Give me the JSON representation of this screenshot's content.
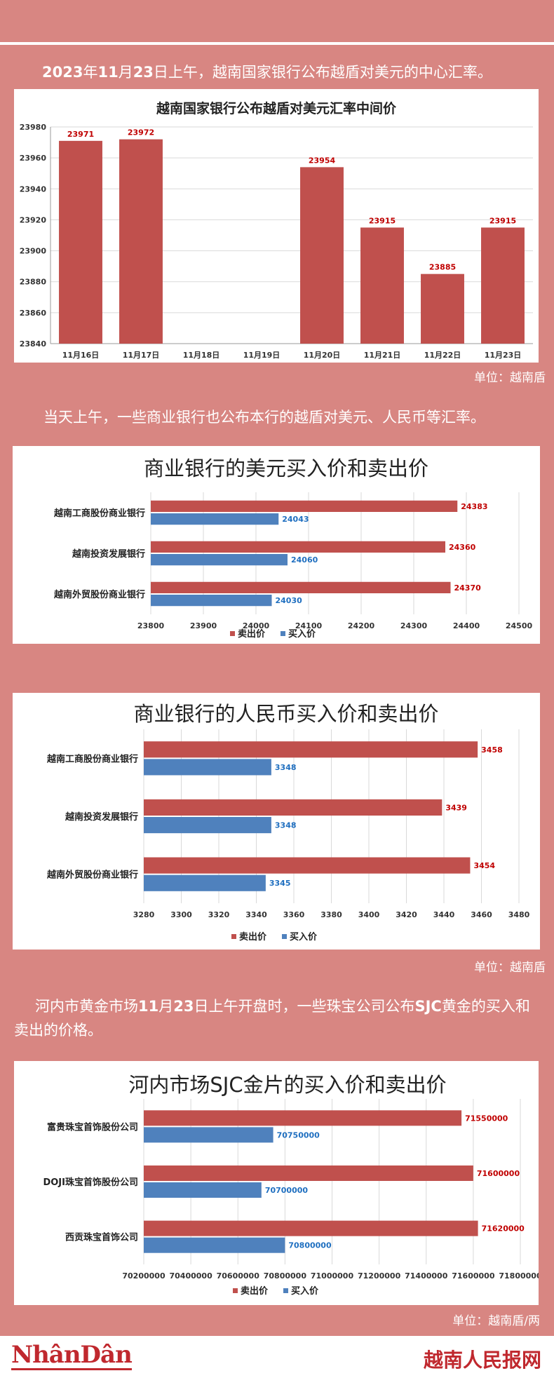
{
  "intro": {
    "year_prefix": "2023",
    "t1": "年",
    "month": "11",
    "t2": "月",
    "day": "23",
    "t3": "日上午，越南国家银行公布越盾对美元的中心汇率。"
  },
  "para2": "当天上午，一些商业银行也公布本行的越盾对美元、人民币等汇率。",
  "para3": {
    "a": "河内市黄金市场",
    "b": "11",
    "c": "月",
    "d": "23",
    "e": "日上午开盘时，一些珠宝公司公布",
    "f": "SJC",
    "g": "黄金的买入和卖出的价格。"
  },
  "units": {
    "u1": "单位：越南盾",
    "u2": "单位：越南盾",
    "u3": "单位：越南盾/两"
  },
  "footer": {
    "left_logo": "NhânDân",
    "right_logo": "越南人民报网"
  },
  "colors": {
    "sell": "#c0504d",
    "buy": "#4f81bd",
    "background": "#d88682"
  },
  "chart_data": [
    {
      "type": "bar",
      "title": "越南国家银行公布越盾对美元汇率中间价",
      "categories": [
        "11月16日",
        "11月17日",
        "11月18日",
        "11月19日",
        "11月20日",
        "11月21日",
        "11月22日",
        "11月23日"
      ],
      "values": [
        23971,
        23972,
        null,
        null,
        23954,
        23915,
        23885,
        23915
      ],
      "labels": [
        "23971",
        "23972",
        "",
        "",
        "23954",
        "23915",
        "23885",
        "23915"
      ],
      "ylim": [
        23840,
        23980
      ],
      "yticks": [
        "23840",
        "23860",
        "23880",
        "23900",
        "23920",
        "23940",
        "23960",
        "23980"
      ],
      "grid": true
    },
    {
      "type": "bar",
      "orientation": "horizontal",
      "title": "商业银行的美元买入价和卖出价",
      "categories": [
        "越南工商股份商业银行",
        "越南投资发展银行",
        "越南外贸股份商业银行"
      ],
      "series": [
        {
          "name": "卖出价",
          "values": [
            24383,
            24360,
            24370
          ],
          "labels": [
            "24383",
            "24360",
            "24370"
          ]
        },
        {
          "name": "买入价",
          "values": [
            24043,
            24060,
            24030
          ],
          "labels": [
            "24043",
            "24060",
            "24030"
          ]
        }
      ],
      "xlim": [
        23800,
        24500
      ],
      "xticks": [
        "23800",
        "23900",
        "24000",
        "24100",
        "24200",
        "24300",
        "24400",
        "24500"
      ],
      "legend": "bottom",
      "grid": true
    },
    {
      "type": "bar",
      "orientation": "horizontal",
      "title": "商业银行的人民币买入价和卖出价",
      "categories": [
        "越南工商股份商业银行",
        "越南投资发展银行",
        "越南外贸股份商业银行"
      ],
      "series": [
        {
          "name": "卖出价",
          "values": [
            3458,
            3439,
            3454
          ],
          "labels": [
            "3458",
            "3439",
            "3454"
          ]
        },
        {
          "name": "买入价",
          "values": [
            3348,
            3348,
            3345
          ],
          "labels": [
            "3348",
            "3348",
            "3345"
          ]
        }
      ],
      "xlim": [
        3280,
        3480
      ],
      "xticks": [
        "3280",
        "3300",
        "3320",
        "3340",
        "3360",
        "3380",
        "3400",
        "3420",
        "3440",
        "3460",
        "3480"
      ],
      "legend": "bottom",
      "grid": true
    },
    {
      "type": "bar",
      "orientation": "horizontal",
      "title": "河内市场SJC金片的买入价和卖出价",
      "categories": [
        "富贵珠宝首饰股份公司",
        "DOJI珠宝首饰股份公司",
        "西贡珠宝首饰公司"
      ],
      "series": [
        {
          "name": "卖出价",
          "values": [
            71550000,
            71600000,
            71620000
          ],
          "labels": [
            "71550000",
            "71600000",
            "71620000"
          ]
        },
        {
          "name": "买入价",
          "values": [
            70750000,
            70700000,
            70800000
          ],
          "labels": [
            "70750000",
            "70700000",
            "70800000"
          ]
        }
      ],
      "xlim": [
        70200000,
        71800000
      ],
      "xticks": [
        "70200000",
        "70400000",
        "70600000",
        "70800000",
        "71000000",
        "71200000",
        "71400000",
        "71600000",
        "71800000"
      ],
      "legend": "bottom",
      "grid": true
    }
  ]
}
